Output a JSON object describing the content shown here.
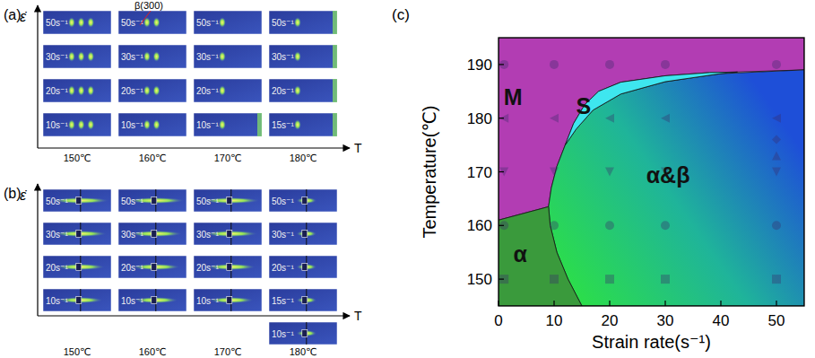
{
  "figure": {
    "panel_a": {
      "label": "(a)",
      "y_label": "ε̇",
      "x_label": "T",
      "annotation": "β(300)",
      "columns": [
        {
          "temperature": "150℃",
          "cells": [
            "50s⁻¹",
            "30s⁻¹",
            "20s⁻¹",
            "10s⁻¹"
          ]
        },
        {
          "temperature": "160℃",
          "cells": [
            "50s⁻¹",
            "30s⁻¹",
            "20s⁻¹",
            "10s⁻¹"
          ]
        },
        {
          "temperature": "170℃",
          "cells": [
            "50s⁻¹",
            "30s⁻¹",
            "20s⁻¹",
            "10s⁻¹"
          ]
        },
        {
          "temperature": "180℃",
          "cells": [
            "50s⁻¹",
            "30s⁻¹",
            "20s⁻¹",
            "15s⁻¹"
          ]
        }
      ]
    },
    "panel_b": {
      "label": "(b)",
      "y_label": "ε̇",
      "x_label": "T",
      "columns": [
        {
          "temperature": "150℃",
          "cells": [
            "50s⁻¹",
            "30s⁻¹",
            "20s⁻¹",
            "10s⁻¹"
          ]
        },
        {
          "temperature": "160℃",
          "cells": [
            "50s⁻¹",
            "30s⁻¹",
            "20s⁻¹",
            "10s⁻¹"
          ]
        },
        {
          "temperature": "170℃",
          "cells": [
            "50s⁻¹",
            "30s⁻¹",
            "20s⁻¹",
            "10s⁻¹"
          ]
        },
        {
          "temperature": "180℃",
          "cells": [
            "50s⁻¹",
            "30s⁻¹",
            "20s⁻¹",
            "15s⁻¹",
            "10s⁻¹"
          ]
        }
      ]
    }
  },
  "chart_data": {
    "type": "phase",
    "title": "(c)",
    "x_label": "Strain rate(s⁻¹)",
    "y_label": "Temperature(℃)",
    "xlim": [
      0,
      55
    ],
    "ylim": [
      145,
      195
    ],
    "xticks": [
      0,
      10,
      20,
      30,
      40,
      50
    ],
    "yticks": [
      150,
      160,
      170,
      180,
      190
    ],
    "regions": [
      {
        "name": "M",
        "color": "#b23db3",
        "label_x": 2.6,
        "label_y": 184,
        "x": [
          0,
          9,
          9.5,
          10.5,
          12,
          13.5,
          15.5,
          18,
          22,
          30,
          38,
          43,
          55,
          55,
          0
        ],
        "y": [
          161,
          163.5,
          167,
          171,
          175,
          179,
          182.5,
          185,
          186.7,
          187.9,
          188.5,
          188.6,
          189,
          195,
          195
        ]
      },
      {
        "name": "α&β",
        "color": "#2ee63a",
        "label_x": 30.5,
        "label_y": 169.4,
        "x": [
          15,
          12.5,
          10.5,
          9.3,
          9,
          9.5,
          10.5,
          12,
          14,
          17,
          22,
          30,
          40,
          55,
          55
        ],
        "y": [
          145,
          150,
          155,
          160,
          163.5,
          167,
          171,
          175,
          178,
          181.5,
          184.5,
          186.8,
          188.3,
          189,
          145
        ]
      },
      {
        "name": "S",
        "color": "#3ee6ef",
        "label_x": 15.3,
        "label_y": 182.3,
        "x": [
          12,
          14,
          17,
          22,
          30,
          40,
          43,
          38,
          30,
          22,
          18,
          15.5,
          13.5
        ],
        "y": [
          175,
          178,
          181.5,
          184.5,
          186.8,
          188.3,
          188.6,
          188.5,
          187.9,
          186.7,
          185,
          182.5,
          179
        ]
      },
      {
        "name": "α",
        "color": "#3a9a3c",
        "label_x": 3.9,
        "label_y": 154.7,
        "x": [
          0,
          0,
          9,
          9.3,
          10.5,
          12.5,
          15
        ],
        "y": [
          145,
          161,
          163.5,
          160,
          155,
          150,
          145
        ]
      }
    ],
    "series": [
      {
        "marker": "square",
        "color": "#3a2a6a",
        "x": [
          1,
          10,
          20,
          30,
          50
        ],
        "values": [
          150,
          150,
          150,
          150,
          150
        ]
      },
      {
        "marker": "circle",
        "color": "#3a2a6a",
        "x": [
          1,
          10,
          20,
          30,
          50
        ],
        "values": [
          160,
          160,
          160,
          160,
          160
        ]
      },
      {
        "marker": "triangle-down",
        "color": "#3a2a6a",
        "x": [
          1,
          10,
          20,
          30,
          50
        ],
        "values": [
          170,
          170,
          170,
          170,
          170
        ]
      },
      {
        "marker": "triangle-left",
        "color": "#3a2a6a",
        "x": [
          1,
          10,
          20,
          30,
          50
        ],
        "values": [
          180,
          180,
          180,
          180,
          180
        ]
      },
      {
        "marker": "circle",
        "color": "#3a2a6a",
        "x": [
          1,
          10,
          20,
          30,
          50
        ],
        "values": [
          190,
          190,
          190,
          190,
          190
        ]
      },
      {
        "marker": "triangle-up",
        "color": "#3a2a6a",
        "x": [
          50
        ],
        "values": [
          173
        ]
      },
      {
        "marker": "diamond",
        "color": "#3a2a6a",
        "x": [
          50
        ],
        "values": [
          176
        ]
      }
    ]
  }
}
